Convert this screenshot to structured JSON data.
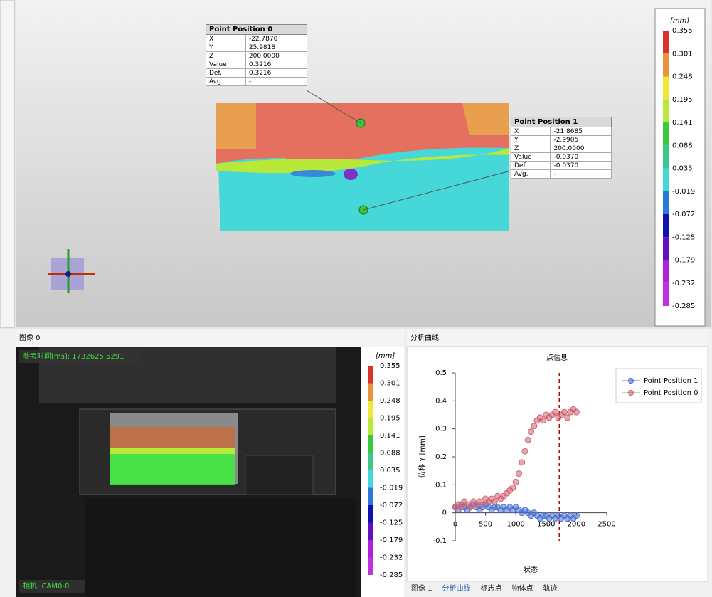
{
  "viewport": {
    "unit": "[mm]",
    "scale_labels": [
      "0.355",
      "0.301",
      "0.248",
      "0.195",
      "0.141",
      "0.088",
      "0.035",
      "-0.019",
      "-0.072",
      "-0.125",
      "-0.179",
      "-0.232",
      "-0.285"
    ],
    "scale_colors": [
      "#d8322a",
      "#e8923a",
      "#f0e838",
      "#b8e83a",
      "#3cc83c",
      "#3cc88c",
      "#44d8d8",
      "#2a78d8",
      "#1010b0",
      "#6010c0",
      "#b020d8",
      "#c030e0"
    ],
    "points": [
      {
        "title": "Point Position 0",
        "rows": [
          [
            "X",
            "-22.7870"
          ],
          [
            "Y",
            "25.9818"
          ],
          [
            "Z",
            "200.0000"
          ],
          [
            "Value",
            "0.3216"
          ],
          [
            "Def.",
            "0.3216"
          ],
          [
            "Avg.",
            "-"
          ]
        ]
      },
      {
        "title": "Point Position 1",
        "rows": [
          [
            "X",
            "-21.8685"
          ],
          [
            "Y",
            "-2.9905"
          ],
          [
            "Z",
            "200.0000"
          ],
          [
            "Value",
            "-0.0370"
          ],
          [
            "Def.",
            "-0.0370"
          ],
          [
            "Avg.",
            "-"
          ]
        ]
      }
    ]
  },
  "image_panel": {
    "title": "图像 0",
    "timestamp": "参考时间[ms]: 1732625.5291",
    "camera": "相机: CAM0-0"
  },
  "chart_panel": {
    "title": "分析曲线"
  },
  "tabs": [
    "图像 1",
    "分析曲线",
    "标志点",
    "物体点",
    "轨迹"
  ],
  "chart_data": {
    "type": "scatter",
    "title": "点信息",
    "x_label": "状态",
    "y_label": "位移 Y [mm]",
    "xlim": [
      0,
      2500
    ],
    "ylim": [
      -0.1,
      0.5
    ],
    "xticks": [
      0,
      500,
      1000,
      1500,
      2000,
      2500
    ],
    "yticks": [
      -0.1,
      0,
      0.1,
      0.2,
      0.3,
      0.4,
      0.5
    ],
    "marker_x": 1720,
    "marker_color": "#c00000",
    "x": [
      0,
      50,
      100,
      150,
      200,
      250,
      300,
      350,
      400,
      450,
      500,
      550,
      600,
      650,
      700,
      750,
      800,
      850,
      900,
      950,
      1000,
      1050,
      1100,
      1150,
      1200,
      1250,
      1300,
      1350,
      1400,
      1450,
      1500,
      1550,
      1600,
      1650,
      1700,
      1750,
      1800,
      1850,
      1900,
      1950,
      2000
    ],
    "series": [
      {
        "name": "Point Position 1",
        "color": "#4a6fd0",
        "values": [
          0.02,
          0.01,
          0.03,
          0.02,
          0.01,
          0.02,
          0.03,
          0.02,
          0.01,
          0.02,
          0.03,
          0.02,
          0.01,
          0.02,
          0.02,
          0.01,
          0.02,
          0.01,
          0.02,
          0.01,
          0.02,
          0.01,
          0,
          0.01,
          0,
          -0.01,
          0,
          -0.01,
          -0.02,
          -0.01,
          -0.01,
          -0.02,
          -0.01,
          -0.02,
          -0.01,
          -0.02,
          -0.01,
          -0.02,
          -0.01,
          -0.02,
          -0.01
        ]
      },
      {
        "name": "Point Position 0",
        "color": "#d06070",
        "values": [
          0.02,
          0.03,
          0.02,
          0.04,
          0.03,
          0.02,
          0.04,
          0.03,
          0.04,
          0.03,
          0.05,
          0.04,
          0.05,
          0.04,
          0.06,
          0.05,
          0.06,
          0.07,
          0.08,
          0.09,
          0.11,
          0.14,
          0.18,
          0.22,
          0.26,
          0.29,
          0.31,
          0.33,
          0.34,
          0.33,
          0.35,
          0.34,
          0.35,
          0.36,
          0.34,
          0.35,
          0.36,
          0.34,
          0.36,
          0.37,
          0.36
        ]
      }
    ]
  }
}
